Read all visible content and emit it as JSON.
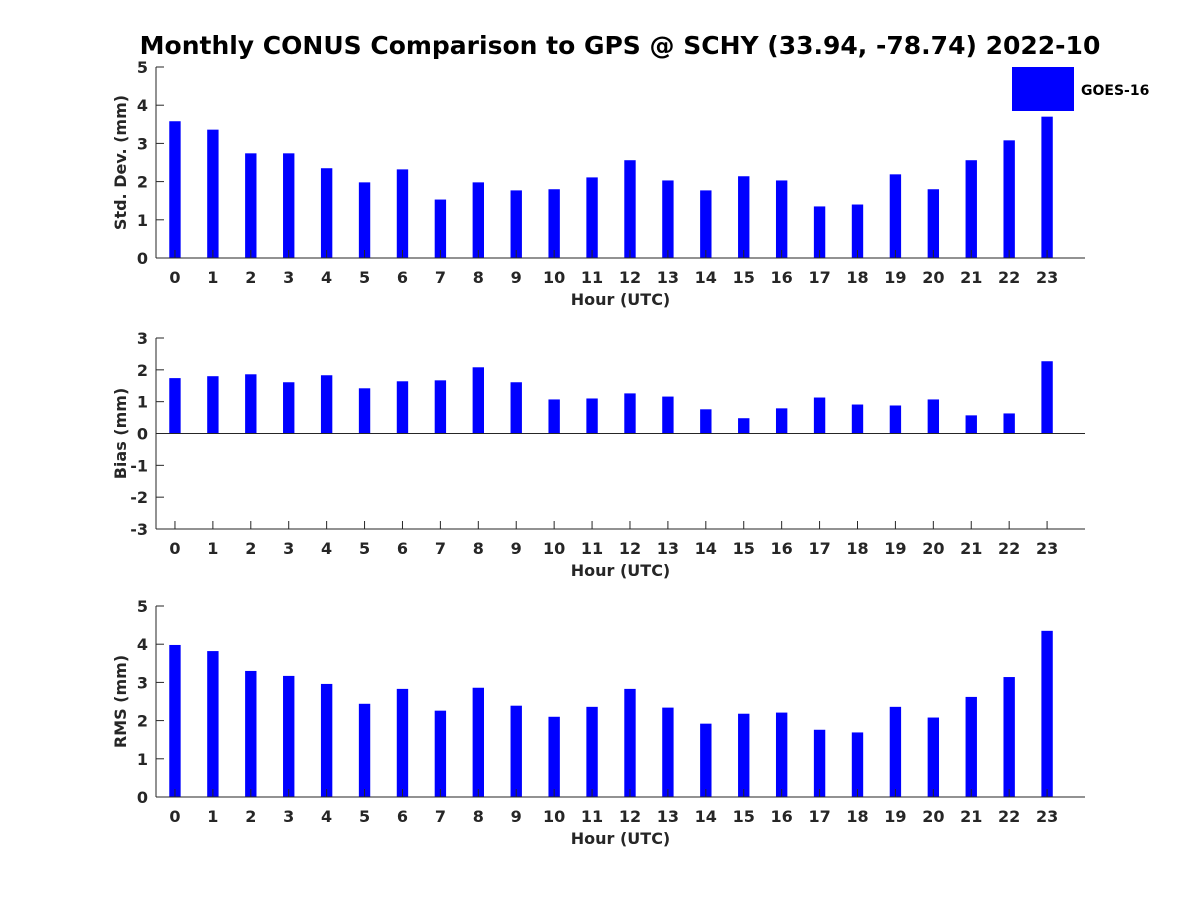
{
  "title": "Monthly CONUS Comparison to GPS @ SCHY (33.94, -78.74) 2022-10",
  "legend": {
    "label": "GOES-16",
    "color": "#0000ff"
  },
  "chart_data": [
    {
      "type": "bar",
      "title": "Monthly CONUS Comparison to GPS @ SCHY (33.94, -78.74) 2022-10",
      "xlabel": "Hour (UTC)",
      "ylabel": "Std. Dev. (mm)",
      "ylim": [
        0,
        5
      ],
      "yticks": [
        0,
        1,
        2,
        3,
        4,
        5
      ],
      "categories": [
        "0",
        "1",
        "2",
        "3",
        "4",
        "5",
        "6",
        "7",
        "8",
        "9",
        "10",
        "11",
        "12",
        "13",
        "14",
        "15",
        "16",
        "17",
        "18",
        "19",
        "20",
        "21",
        "22",
        "23"
      ],
      "series": [
        {
          "name": "GOES-16",
          "color": "#0000ff",
          "values": [
            3.58,
            3.36,
            2.74,
            2.74,
            2.35,
            1.98,
            2.32,
            1.53,
            1.98,
            1.77,
            1.8,
            2.11,
            2.56,
            2.03,
            1.77,
            2.14,
            2.03,
            1.35,
            1.4,
            2.19,
            1.8,
            2.56,
            3.08,
            3.7
          ]
        }
      ]
    },
    {
      "type": "bar",
      "xlabel": "Hour (UTC)",
      "ylabel": "Bias (mm)",
      "ylim": [
        -3,
        3
      ],
      "yticks": [
        -3,
        -2,
        -1,
        0,
        1,
        2,
        3
      ],
      "categories": [
        "0",
        "1",
        "2",
        "3",
        "4",
        "5",
        "6",
        "7",
        "8",
        "9",
        "10",
        "11",
        "12",
        "13",
        "14",
        "15",
        "16",
        "17",
        "18",
        "19",
        "20",
        "21",
        "22",
        "23"
      ],
      "series": [
        {
          "name": "GOES-16",
          "color": "#0000ff",
          "values": [
            1.74,
            1.8,
            1.86,
            1.61,
            1.83,
            1.42,
            1.64,
            1.67,
            2.08,
            1.61,
            1.07,
            1.1,
            1.26,
            1.16,
            0.76,
            0.48,
            0.79,
            1.13,
            0.91,
            0.88,
            1.07,
            0.57,
            0.63,
            2.27
          ]
        }
      ]
    },
    {
      "type": "bar",
      "xlabel": "Hour (UTC)",
      "ylabel": "RMS (mm)",
      "ylim": [
        0,
        5
      ],
      "yticks": [
        0,
        1,
        2,
        3,
        4,
        5
      ],
      "categories": [
        "0",
        "1",
        "2",
        "3",
        "4",
        "5",
        "6",
        "7",
        "8",
        "9",
        "10",
        "11",
        "12",
        "13",
        "14",
        "15",
        "16",
        "17",
        "18",
        "19",
        "20",
        "21",
        "22",
        "23"
      ],
      "series": [
        {
          "name": "GOES-16",
          "color": "#0000ff",
          "values": [
            3.98,
            3.82,
            3.3,
            3.17,
            2.96,
            2.44,
            2.83,
            2.26,
            2.86,
            2.39,
            2.1,
            2.36,
            2.83,
            2.34,
            1.92,
            2.18,
            2.21,
            1.76,
            1.69,
            2.36,
            2.08,
            2.62,
            3.14,
            4.35
          ]
        }
      ]
    }
  ]
}
